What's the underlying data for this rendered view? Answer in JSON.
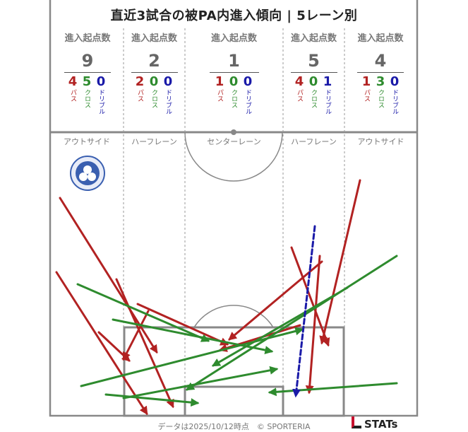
{
  "title": "直近3試合の被PA内進入傾向 | 5レーン別",
  "lanes": [
    {
      "label": "進入起点数",
      "total": "9",
      "pass": "4",
      "cross": "5",
      "dribble": "0"
    },
    {
      "label": "進入起点数",
      "total": "2",
      "pass": "2",
      "cross": "0",
      "dribble": "0"
    },
    {
      "label": "進入起点数",
      "total": "1",
      "pass": "1",
      "cross": "0",
      "dribble": "0"
    },
    {
      "label": "進入起点数",
      "total": "5",
      "pass": "4",
      "cross": "0",
      "dribble": "1"
    },
    {
      "label": "進入起点数",
      "total": "4",
      "pass": "1",
      "cross": "3",
      "dribble": "0"
    }
  ],
  "type_labels": {
    "pass": "パス",
    "cross": "クロス",
    "dribble": "ドリブル"
  },
  "zones": [
    "アウトサイド",
    "ハーフレーン",
    "センターレーン",
    "ハーフレーン",
    "アウトサイド"
  ],
  "colors": {
    "pass": "#b22222",
    "cross": "#2e8b2e",
    "dribble": "#1a1aa8"
  },
  "arrows": [
    {
      "type": "pass",
      "from": [
        85,
        280
      ],
      "to": [
        222,
        498
      ]
    },
    {
      "type": "pass",
      "from": [
        80,
        385
      ],
      "to": [
        208,
        585
      ]
    },
    {
      "type": "pass",
      "from": [
        140,
        470
      ],
      "to": [
        183,
        510
      ]
    },
    {
      "type": "pass",
      "from": [
        210,
        440
      ],
      "to": [
        175,
        508
      ]
    },
    {
      "type": "pass",
      "from": [
        165,
        395
      ],
      "to": [
        245,
        575
      ]
    },
    {
      "type": "pass",
      "from": [
        195,
        430
      ],
      "to": [
        322,
        487
      ]
    },
    {
      "type": "pass",
      "from": [
        456,
        370
      ],
      "to": [
        325,
        480
      ]
    },
    {
      "type": "pass",
      "from": [
        413,
        350
      ],
      "to": [
        465,
        488
      ]
    },
    {
      "type": "pass",
      "from": [
        453,
        362
      ],
      "to": [
        438,
        555
      ]
    },
    {
      "type": "pass",
      "from": [
        510,
        255
      ],
      "to": [
        456,
        485
      ]
    },
    {
      "type": "pass",
      "from": [
        425,
        460
      ],
      "to": [
        312,
        495
      ]
    },
    {
      "type": "cross",
      "from": [
        110,
        402
      ],
      "to": [
        295,
        482
      ]
    },
    {
      "type": "cross",
      "from": [
        160,
        452
      ],
      "to": [
        385,
        497
      ]
    },
    {
      "type": "cross",
      "from": [
        115,
        546
      ],
      "to": [
        428,
        466
      ]
    },
    {
      "type": "cross",
      "from": [
        150,
        558
      ],
      "to": [
        280,
        570
      ]
    },
    {
      "type": "cross",
      "from": [
        175,
        563
      ],
      "to": [
        392,
        522
      ]
    },
    {
      "type": "cross",
      "from": [
        562,
        362
      ],
      "to": [
        265,
        551
      ]
    },
    {
      "type": "cross",
      "from": [
        492,
        407
      ],
      "to": [
        302,
        517
      ]
    },
    {
      "type": "cross",
      "from": [
        562,
        542
      ],
      "to": [
        382,
        555
      ]
    },
    {
      "type": "dribble",
      "from": [
        446,
        320
      ],
      "to": [
        419,
        560
      ]
    }
  ],
  "footer": "データは2025/10/12時点　© SPORTERIA",
  "brand": "STATs"
}
